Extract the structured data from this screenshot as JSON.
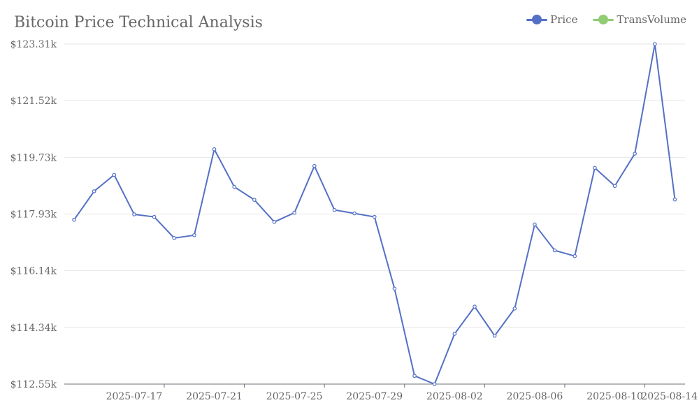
{
  "chart_data": {
    "type": "line",
    "title": "Bitcoin Price Technical Analysis",
    "xlabel": "",
    "ylabel": "",
    "ylim": [
      112550,
      123310
    ],
    "y_ticks": [
      "$112.55k",
      "$114.34k",
      "$116.14k",
      "$117.93k",
      "$119.73k",
      "$121.52k",
      "$123.31k"
    ],
    "y_tick_values": [
      112550,
      114343,
      116137,
      117930,
      119723,
      121517,
      123310
    ],
    "x_ticks": [
      "2025-07-17",
      "2025-07-21",
      "2025-07-25",
      "2025-07-29",
      "2025-08-02",
      "2025-08-06",
      "2025-08-10",
      "2025-08-14"
    ],
    "grid": true,
    "legend_position": "top-right",
    "legend": [
      {
        "name": "Price",
        "color": "#5470c6"
      },
      {
        "name": "TransVolume",
        "color": "#91cc75"
      }
    ],
    "x": [
      "2025-07-14",
      "2025-07-15",
      "2025-07-16",
      "2025-07-17",
      "2025-07-18",
      "2025-07-19",
      "2025-07-20",
      "2025-07-21",
      "2025-07-22",
      "2025-07-23",
      "2025-07-24",
      "2025-07-25",
      "2025-07-26",
      "2025-07-27",
      "2025-07-28",
      "2025-07-29",
      "2025-07-30",
      "2025-07-31",
      "2025-08-01",
      "2025-08-02",
      "2025-08-03",
      "2025-08-04",
      "2025-08-05",
      "2025-08-06",
      "2025-08-07",
      "2025-08-08",
      "2025-08-09",
      "2025-08-10",
      "2025-08-11",
      "2025-08-12",
      "2025-08-13"
    ],
    "series": [
      {
        "name": "Price",
        "color": "#5470c6",
        "values": [
          117750,
          118650,
          119170,
          117920,
          117840,
          117170,
          117260,
          119980,
          118790,
          118380,
          117680,
          117970,
          119450,
          118060,
          117950,
          117840,
          115570,
          112810,
          112550,
          114140,
          115000,
          114080,
          114940,
          117600,
          116780,
          116600,
          119390,
          118820,
          119840,
          123310,
          118390
        ]
      }
    ]
  }
}
